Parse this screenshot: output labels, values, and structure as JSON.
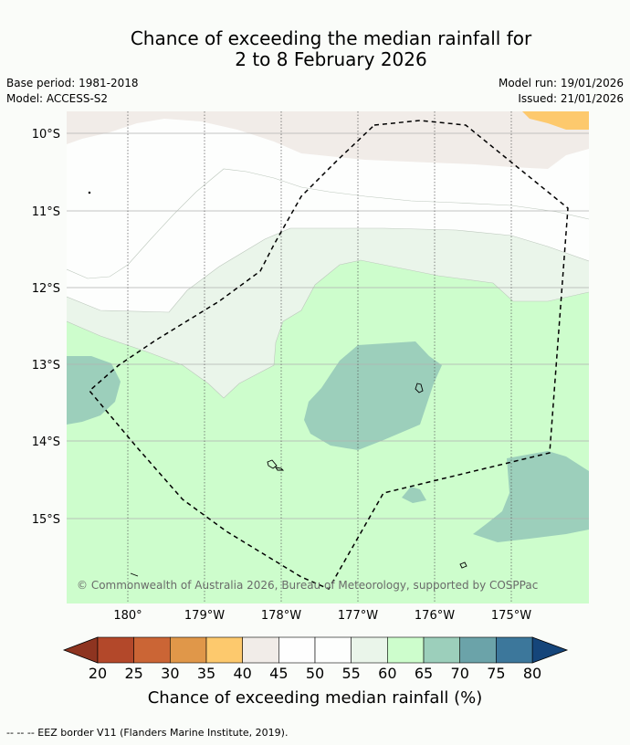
{
  "title": {
    "line1": "Chance of exceeding the median rainfall for",
    "line2": "2 to 8 February 2026"
  },
  "meta": {
    "base_period": "Base period: 1981-2018",
    "model": "Model: ACCESS-S2",
    "model_run": "Model run: 19/01/2026",
    "issued": "Issued: 21/01/2026"
  },
  "map": {
    "lat_labels": [
      "10°S",
      "11°S",
      "12°S",
      "13°S",
      "14°S",
      "15°S"
    ],
    "lon_labels": [
      "180°",
      "179°W",
      "178°W",
      "177°W",
      "176°W",
      "175°W"
    ],
    "copyright": "© Commonwealth of Australia 2026, Bureau of Meteorology, supported by COSPPac"
  },
  "colorbar": {
    "ticks": [
      "20",
      "25",
      "30",
      "35",
      "40",
      "45",
      "50",
      "55",
      "60",
      "65",
      "70",
      "75",
      "80"
    ],
    "label": "Chance of exceeding median rainfall (%)",
    "under_color": "#8e3420",
    "over_color": "#15457a",
    "colors": [
      "#b3482a",
      "#cb6535",
      "#e09749",
      "#fdc96d",
      "#f1ece8",
      "#fefefe",
      "#fdfefd",
      "#eaf5ea",
      "#cdfdcc",
      "#9ccfbb",
      "#6ba3a9",
      "#3c779b"
    ]
  },
  "legend": {
    "eez_text": "--  --  -- EEZ border V11 (Flanders Marine Institute, 2019)."
  }
}
